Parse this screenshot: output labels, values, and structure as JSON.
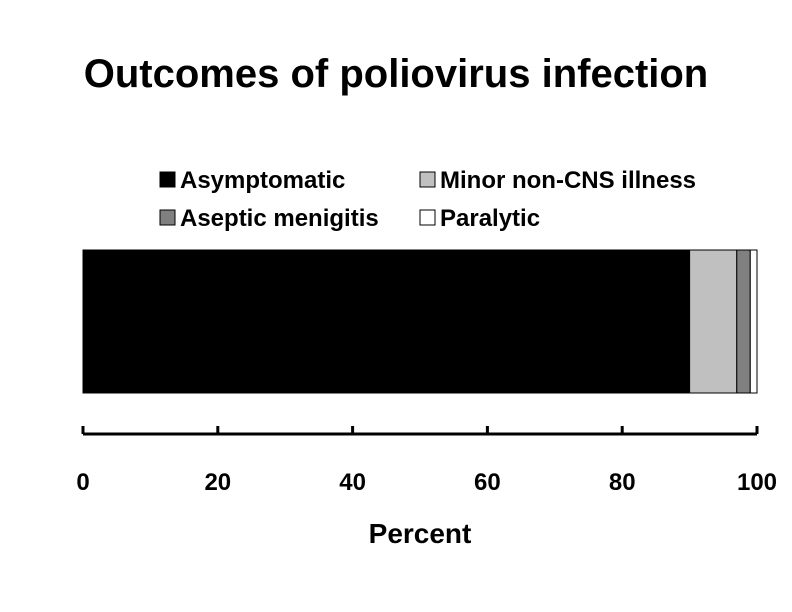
{
  "chart_data": {
    "type": "bar",
    "orientation": "horizontal",
    "stacked": true,
    "title": "Outcomes of poliovirus infection",
    "xlabel": "Percent",
    "ylabel": "",
    "xlim": [
      0,
      100
    ],
    "x_ticks": [
      "0",
      "20",
      "40",
      "60",
      "80",
      "100"
    ],
    "grid": false,
    "legend_position": "top",
    "series": [
      {
        "name": "Asymptomatic",
        "value": 90,
        "color": "#000000"
      },
      {
        "name": "Minor non-CNS illness",
        "value": 7,
        "color": "#c0c0c0"
      },
      {
        "name": "Aseptic menigitis",
        "value": 2,
        "color": "#808080"
      },
      {
        "name": "Paralytic",
        "value": 1,
        "color": "#ffffff"
      }
    ]
  }
}
